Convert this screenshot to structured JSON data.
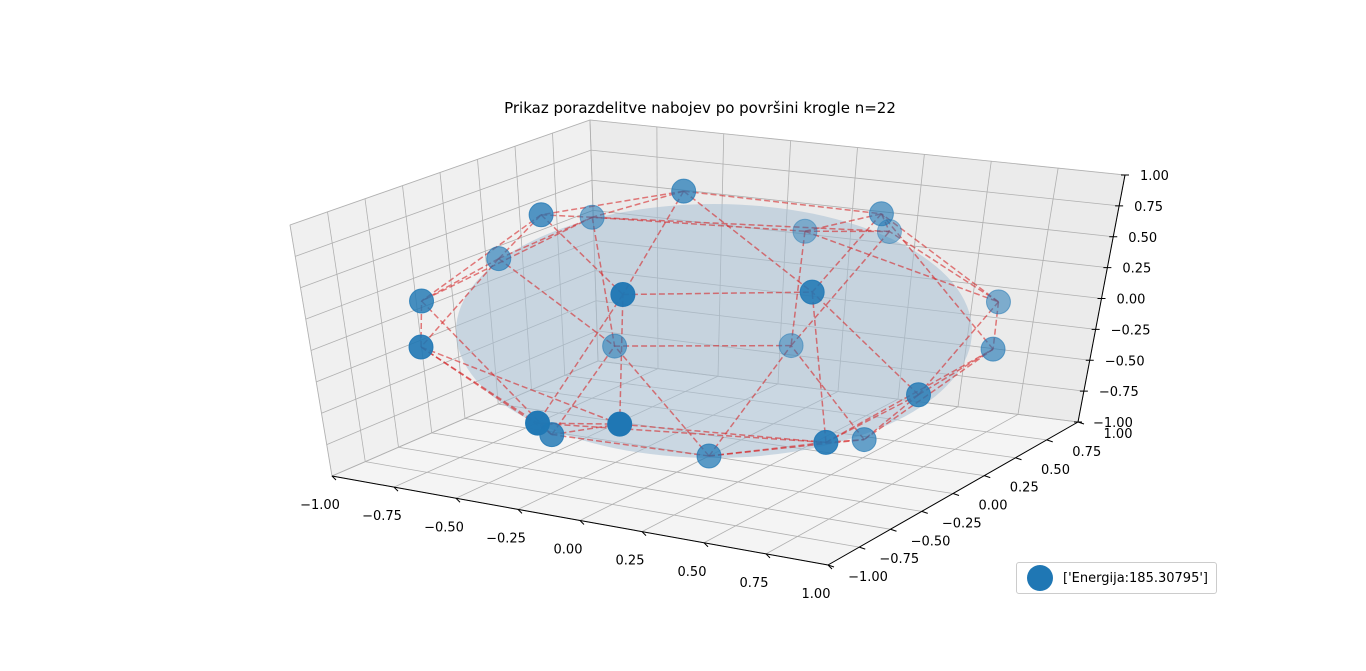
{
  "chart_data": {
    "type": "scatter",
    "title": "Prikaz porazdelitve nabojev po površini krogle n=22",
    "xlim": [
      -1.0,
      1.0
    ],
    "ylim": [
      -1.0,
      1.0
    ],
    "zlim": [
      -1.0,
      1.0
    ],
    "x_ticks": [
      "−1.00",
      "−0.75",
      "−0.50",
      "−0.25",
      "0.00",
      "0.25",
      "0.50",
      "0.75",
      "1.00"
    ],
    "y_ticks": [
      "−1.00",
      "−0.75",
      "−0.50",
      "−0.25",
      "0.00",
      "0.25",
      "0.50",
      "0.75",
      "1.00"
    ],
    "z_ticks": [
      "−1.00",
      "−0.75",
      "−0.50",
      "−0.25",
      "0.00",
      "0.25",
      "0.50",
      "0.75",
      "1.00"
    ],
    "grid": true,
    "legend_position": "bottom-right",
    "series": [
      {
        "name": "['Energija:185.30795']",
        "color": "#1f77b4",
        "points": [
          {
            "x": -0.1,
            "y": 0.0,
            "z": 1.0
          },
          {
            "x": 0.0,
            "y": 0.0,
            "z": -1.0
          },
          {
            "x": -0.95,
            "y": 0.25,
            "z": 0.2
          },
          {
            "x": 0.95,
            "y": -0.25,
            "z": -0.2
          },
          {
            "x": -0.75,
            "y": 0.55,
            "z": 0.45
          },
          {
            "x": 0.75,
            "y": -0.55,
            "z": -0.45
          },
          {
            "x": -0.15,
            "y": 0.95,
            "z": 0.3
          },
          {
            "x": 0.15,
            "y": -0.95,
            "z": -0.3
          },
          {
            "x": 0.8,
            "y": 0.6,
            "z": 0.1
          },
          {
            "x": -0.8,
            "y": -0.6,
            "z": -0.1
          },
          {
            "x": 0.45,
            "y": 0.35,
            "z": 0.8
          },
          {
            "x": -0.45,
            "y": -0.35,
            "z": -0.8
          },
          {
            "x": -0.55,
            "y": -0.15,
            "z": 0.8
          },
          {
            "x": 0.55,
            "y": 0.15,
            "z": -0.8
          },
          {
            "x": 0.1,
            "y": -0.8,
            "z": 0.55
          },
          {
            "x": -0.1,
            "y": 0.8,
            "z": -0.55
          },
          {
            "x": 0.65,
            "y": -0.5,
            "z": 0.55
          },
          {
            "x": -0.65,
            "y": 0.5,
            "z": -0.55
          },
          {
            "x": 0.2,
            "y": 0.9,
            "z": 0.4
          },
          {
            "x": -0.2,
            "y": -0.9,
            "z": -0.4
          },
          {
            "x": -0.95,
            "y": -0.3,
            "z": 0.1
          },
          {
            "x": 0.95,
            "y": 0.3,
            "z": -0.1
          }
        ]
      }
    ]
  }
}
